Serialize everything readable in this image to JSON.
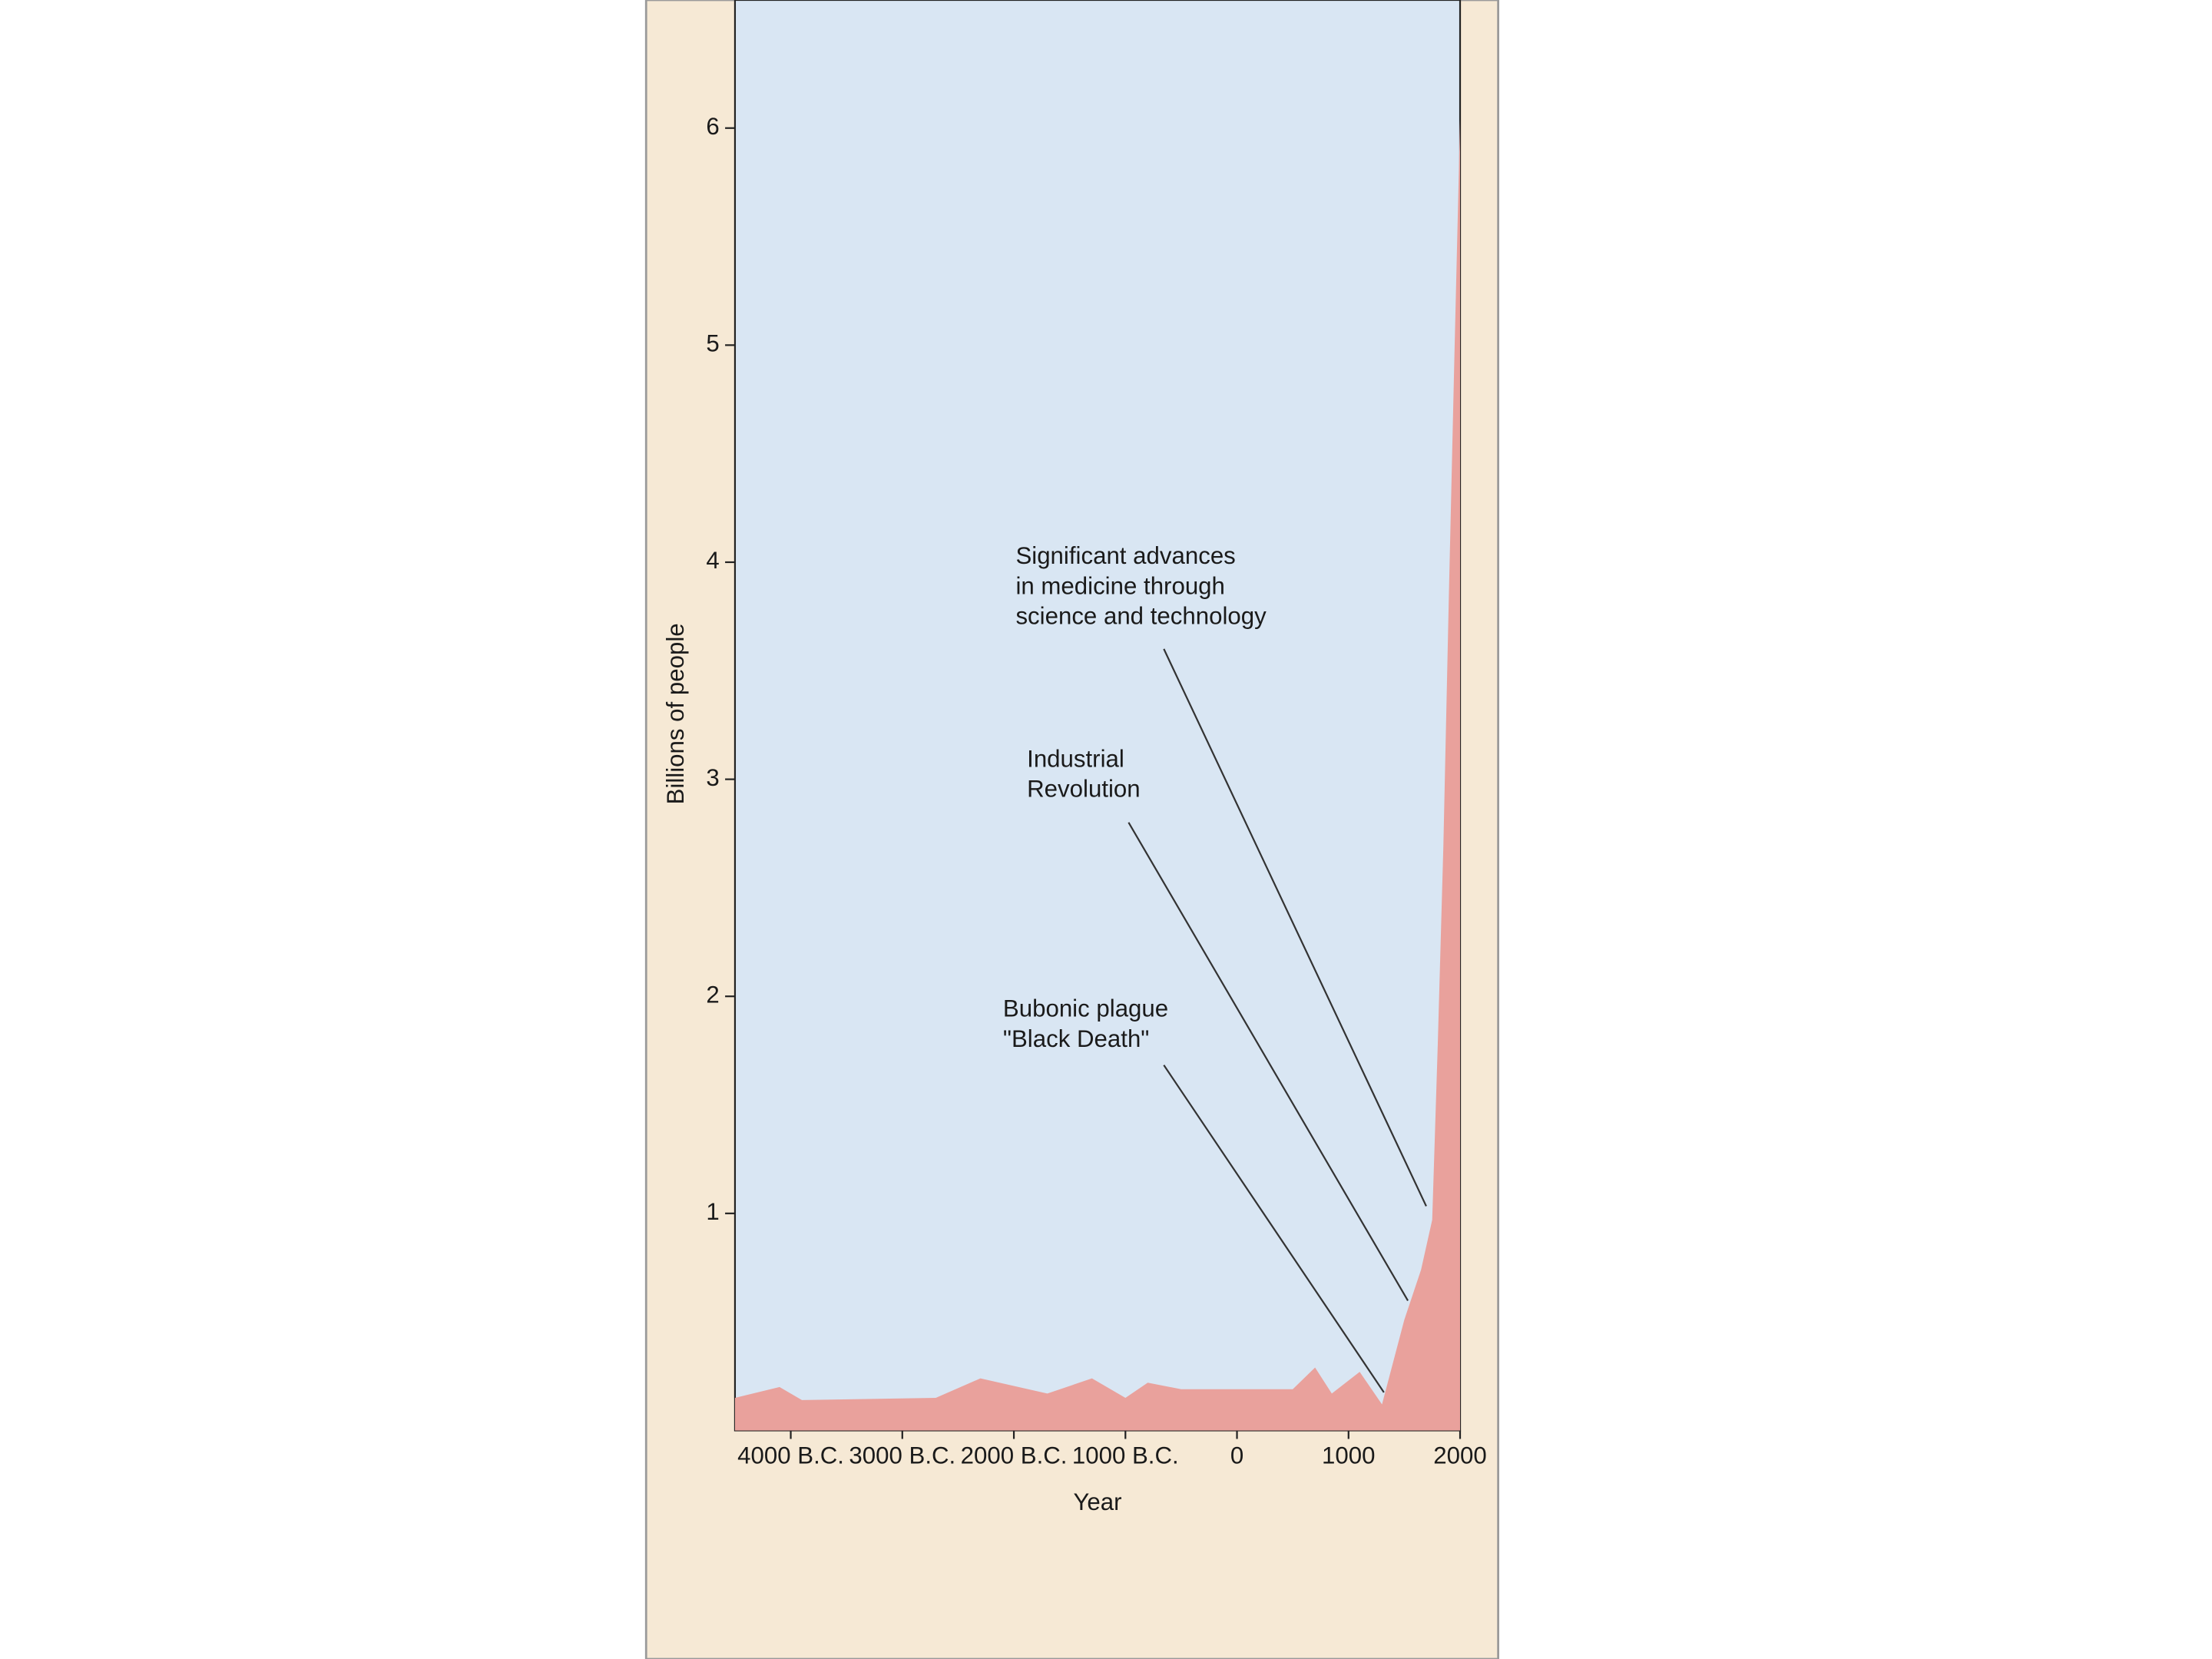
{
  "chart_data": {
    "type": "area",
    "xlabel": "Year",
    "ylabel": "Billions of people",
    "x": [
      -4500,
      -4100,
      -3900,
      -2700,
      -2300,
      -1700,
      -1300,
      -1000,
      -800,
      -500,
      500,
      700,
      850,
      1100,
      1300,
      1500,
      1650,
      1750,
      1800,
      1850,
      1900,
      1950,
      2000
    ],
    "values": [
      0.15,
      0.2,
      0.14,
      0.15,
      0.24,
      0.17,
      0.24,
      0.15,
      0.22,
      0.19,
      0.19,
      0.29,
      0.17,
      0.27,
      0.12,
      0.51,
      0.74,
      0.97,
      1.78,
      2.69,
      3.86,
      4.97,
      6.04
    ],
    "color": "#e9a19c",
    "xlim": [
      -4500,
      2000
    ],
    "ylim": [
      0,
      6.59
    ],
    "xticks": [
      {
        "value": -4000,
        "label": "4000 B.C."
      },
      {
        "value": -3000,
        "label": "3000 B.C."
      },
      {
        "value": -2000,
        "label": "2000 B.C."
      },
      {
        "value": -1000,
        "label": "1000 B.C."
      },
      0,
      1000,
      2000
    ],
    "yticks": [
      1,
      2,
      3,
      4,
      5,
      6
    ],
    "annotations": [
      {
        "lines": [
          "Significant advances",
          "in medicine through",
          "science and technology"
        ]
      },
      {
        "lines": [
          "Industrial",
          "Revolution"
        ]
      },
      {
        "lines": [
          "Bubonic plague",
          "\"Black Death\""
        ]
      }
    ]
  }
}
